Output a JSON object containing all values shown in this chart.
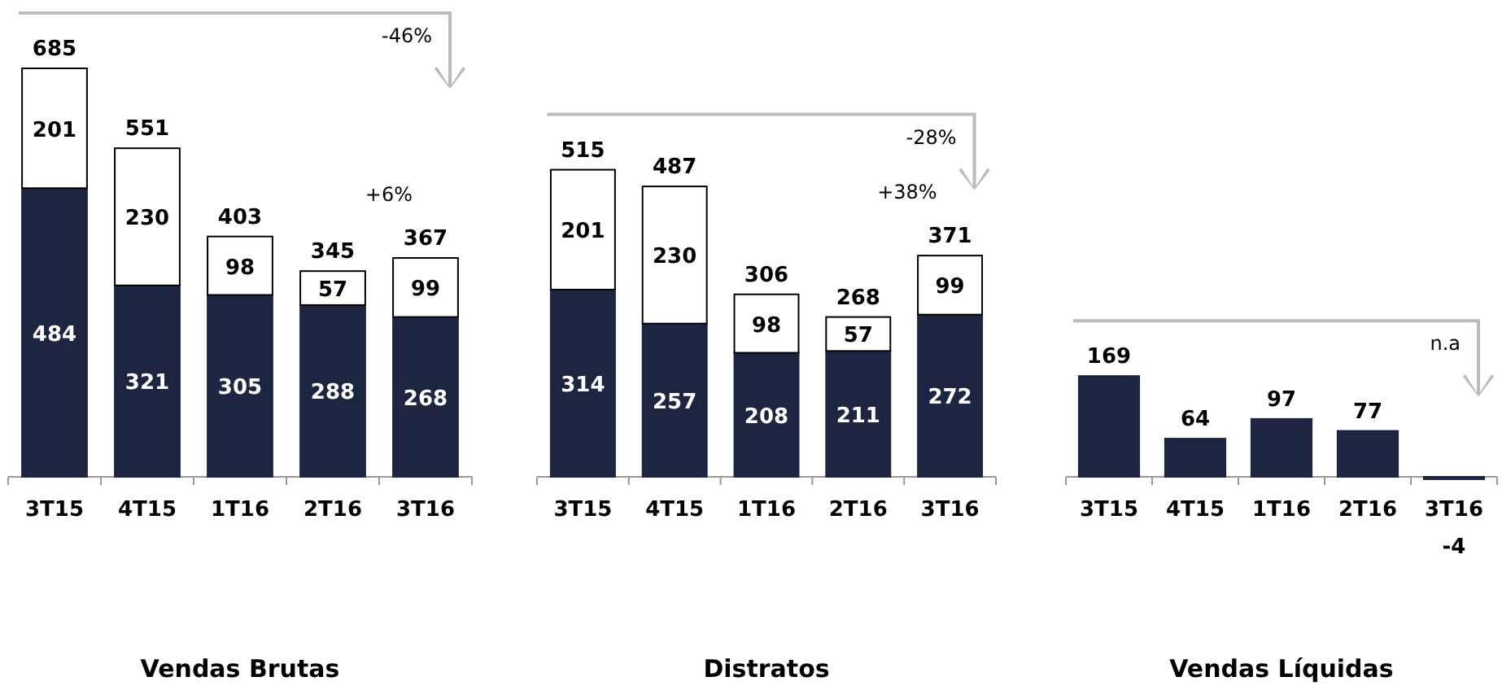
{
  "chart_data": [
    {
      "type": "bar",
      "title": "Vendas Brutas",
      "categories": [
        "3T15",
        "4T15",
        "1T16",
        "2T16",
        "3T16"
      ],
      "stacked": true,
      "data_labels": true,
      "series": [
        {
          "color": "#1d2541",
          "values": [
            484,
            321,
            305,
            288,
            268
          ]
        },
        {
          "color": "#ffffff",
          "values": [
            201,
            230,
            98,
            57,
            99
          ]
        }
      ],
      "totals": [
        "685",
        "551",
        "403",
        "345",
        "367"
      ],
      "annotations": [
        "-46%",
        "+6%"
      ]
    },
    {
      "type": "bar",
      "title": "Distratos",
      "categories": [
        "3T15",
        "4T15",
        "1T16",
        "2T16",
        "3T16"
      ],
      "stacked": true,
      "data_labels": true,
      "series": [
        {
          "color": "#1d2541",
          "values": [
            314,
            257,
            208,
            211,
            272
          ]
        },
        {
          "color": "#ffffff",
          "values": [
            201,
            230,
            98,
            57,
            99
          ]
        }
      ],
      "totals": [
        "515",
        "487",
        "306",
        "268",
        "371"
      ],
      "annotations": [
        "-28%",
        "+38%"
      ]
    },
    {
      "type": "bar",
      "title": "Vendas Líquidas",
      "categories": [
        "3T15",
        "4T15",
        "1T16",
        "2T16",
        "3T16"
      ],
      "data_labels": true,
      "series": [
        {
          "color": "#1d2541",
          "values": [
            169,
            64,
            97,
            77,
            -4
          ]
        }
      ],
      "annotations": [
        "n.a"
      ]
    }
  ]
}
